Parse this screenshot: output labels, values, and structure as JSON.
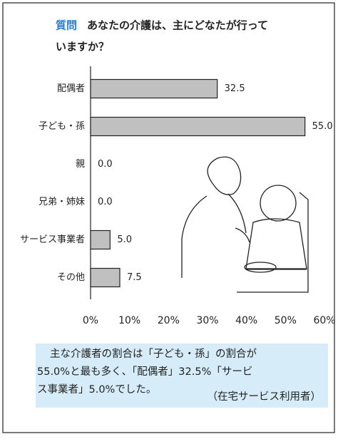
{
  "chart_data": {
    "type": "barh",
    "title_label": "質問",
    "title_lines": [
      "あなたの介護は、主にどなたが行って",
      "いますか？"
    ],
    "categories": [
      "配偶者",
      "子ども・孫",
      "親",
      "兄弟・姉妹",
      "サービス事業者",
      "その他"
    ],
    "values": [
      32.5,
      55.0,
      0.0,
      0.0,
      5.0,
      7.5
    ],
    "value_labels": [
      "32.5",
      "55.0",
      "0.0",
      "0.0",
      "5.0",
      "7.5"
    ],
    "color": "#c0c0c0",
    "xlim": [
      0,
      60
    ],
    "xticks": [
      {
        "value": 0,
        "label": "0%"
      },
      {
        "value": 10,
        "label": "10%"
      },
      {
        "value": 20,
        "label": "20%"
      },
      {
        "value": 30,
        "label": "30%"
      },
      {
        "value": 40,
        "label": "40%"
      },
      {
        "value": 50,
        "label": "50%"
      },
      {
        "value": 60,
        "label": "60%"
      }
    ],
    "note_lines": [
      "主な介護者の割合は「子ども・孫」の割合が",
      "55.0%と最も多く、「配偶者」32.5%「サービ",
      "ス事業者」5.0%でした。"
    ],
    "source": "（在宅サービス利用者）"
  }
}
